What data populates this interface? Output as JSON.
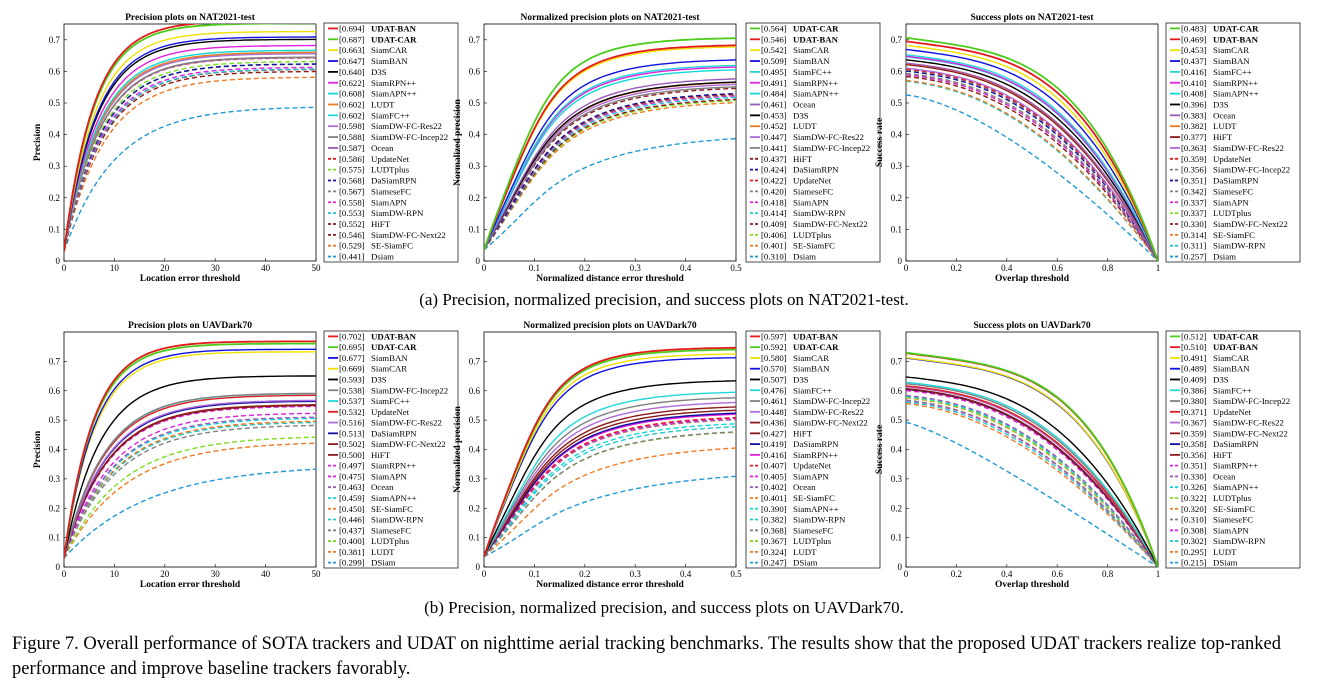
{
  "figure": {
    "caption_a": "(a) Precision, normalized precision, and success plots on NAT2021-test.",
    "caption_b": "(b) Precision, normalized precision, and success plots on UAVDark70.",
    "caption_main": "Figure 7. Overall performance of SOTA trackers and UDAT on nighttime aerial tracking benchmarks. The results show that the proposed UDAT trackers realize top-ranked performance and improve baseline trackers favorably."
  },
  "tracker_colors": {
    "UDAT-BAN": "#e41a1c",
    "UDAT-CAR": "#4ccc1a",
    "SiamCAR": "#f0e000",
    "SiamBAN": "#1010e0",
    "D3S": "#000000",
    "SiamRPN++": "#e020e0",
    "SiamAPN++": "#10d8d8",
    "LUDT": "#f07a20",
    "SiamFC++": "#20d8d8",
    "SiamDW-FC-Res22": "#ad6ad8",
    "SiamDW-FC-Incep22": "#808080",
    "Ocean": "#9b59b6",
    "UpdateNet": "#e41a1c",
    "LUDTplus": "#7ddc1f",
    "DaSiamRPN": "#1010a0",
    "SiameseFC": "#808080",
    "SiamAPN": "#e020e0",
    "SiamDW-RPN": "#20c8d0",
    "HiFT": "#8b1a1a",
    "SiamDW-FC-Next22": "#8b1a1a",
    "SE-SiamFC": "#f07a20",
    "DSiam": "#1f9ad6",
    "Dsiam": "#1f9ad6"
  },
  "chart_data": [
    {
      "type": "line",
      "title": "Precision plots on NAT2021-test",
      "xlabel": "Location error threshold",
      "ylabel": "Precision",
      "xlim": [
        0,
        50
      ],
      "ylim": [
        0,
        0.75
      ],
      "xticks": [
        0,
        10,
        20,
        30,
        40,
        50
      ],
      "yticks": [
        0,
        0.1,
        0.2,
        0.3,
        0.4,
        0.5,
        0.6,
        0.7
      ],
      "curve": "precision",
      "legend": [
        {
          "score": "0.694",
          "name": "UDAT-BAN",
          "bold": true
        },
        {
          "score": "0.687",
          "name": "UDAT-CAR",
          "bold": true
        },
        {
          "score": "0.663",
          "name": "SiamCAR"
        },
        {
          "score": "0.647",
          "name": "SiamBAN"
        },
        {
          "score": "0.640",
          "name": "D3S"
        },
        {
          "score": "0.622",
          "name": "SiamRPN++"
        },
        {
          "score": "0.608",
          "name": "SiamAPN++"
        },
        {
          "score": "0.602",
          "name": "LUDT"
        },
        {
          "score": "0.602",
          "name": "SiamFC++"
        },
        {
          "score": "0.598",
          "name": "SiamDW-FC-Res22"
        },
        {
          "score": "0.588",
          "name": "SiamDW-FC-Incep22"
        },
        {
          "score": "0.587",
          "name": "Ocean"
        },
        {
          "score": "0.586",
          "name": "UpdateNet",
          "dashed": true
        },
        {
          "score": "0.575",
          "name": "LUDTplus",
          "dashed": true
        },
        {
          "score": "0.568",
          "name": "DaSiamRPN",
          "dashed": true
        },
        {
          "score": "0.567",
          "name": "SiameseFC",
          "dashed": true
        },
        {
          "score": "0.558",
          "name": "SiamAPN",
          "dashed": true
        },
        {
          "score": "0.553",
          "name": "SiamDW-RPN",
          "dashed": true
        },
        {
          "score": "0.552",
          "name": "HiFT",
          "dashed": true
        },
        {
          "score": "0.546",
          "name": "SiamDW-FC-Next22",
          "dashed": true
        },
        {
          "score": "0.529",
          "name": "SE-SiamFC",
          "dashed": true
        },
        {
          "score": "0.441",
          "name": "Dsiam",
          "dashed": true
        }
      ]
    },
    {
      "type": "line",
      "title": "Normalized precision plots on NAT2021-test",
      "xlabel": "Normalized distance error threshold",
      "ylabel": "Normalized precision",
      "xlim": [
        0,
        0.5
      ],
      "ylim": [
        0,
        0.75
      ],
      "xticks": [
        0,
        0.1,
        0.2,
        0.3,
        0.4,
        0.5
      ],
      "yticks": [
        0,
        0.1,
        0.2,
        0.3,
        0.4,
        0.5,
        0.6,
        0.7
      ],
      "curve": "normprec",
      "legend": [
        {
          "score": "0.564",
          "name": "UDAT-CAR",
          "bold": true
        },
        {
          "score": "0.546",
          "name": "UDAT-BAN",
          "bold": true
        },
        {
          "score": "0.542",
          "name": "SiamCAR"
        },
        {
          "score": "0.509",
          "name": "SiamBAN"
        },
        {
          "score": "0.495",
          "name": "SiamFC++"
        },
        {
          "score": "0.491",
          "name": "SiamRPN++"
        },
        {
          "score": "0.484",
          "name": "SiamAPN++"
        },
        {
          "score": "0.461",
          "name": "Ocean"
        },
        {
          "score": "0.453",
          "name": "D3S"
        },
        {
          "score": "0.452",
          "name": "LUDT"
        },
        {
          "score": "0.447",
          "name": "SiamDW-FC-Res22"
        },
        {
          "score": "0.441",
          "name": "SiamDW-FC-Incep22"
        },
        {
          "score": "0.437",
          "name": "HiFT",
          "dashed": true
        },
        {
          "score": "0.424",
          "name": "DaSiamRPN",
          "dashed": true
        },
        {
          "score": "0.422",
          "name": "UpdateNet",
          "dashed": true
        },
        {
          "score": "0.420",
          "name": "SiameseFC",
          "dashed": true
        },
        {
          "score": "0.418",
          "name": "SiamAPN",
          "dashed": true
        },
        {
          "score": "0.414",
          "name": "SiamDW-RPN",
          "dashed": true
        },
        {
          "score": "0.409",
          "name": "SiamDW-FC-Next22",
          "dashed": true
        },
        {
          "score": "0.406",
          "name": "LUDTplus",
          "dashed": true
        },
        {
          "score": "0.401",
          "name": "SE-SiamFC",
          "dashed": true
        },
        {
          "score": "0.310",
          "name": "Dsiam",
          "dashed": true
        }
      ]
    },
    {
      "type": "line",
      "title": "Success plots on NAT2021-test",
      "xlabel": "Overlap threshold",
      "ylabel": "Success rate",
      "xlim": [
        0,
        1
      ],
      "ylim": [
        0,
        0.75
      ],
      "xticks": [
        0,
        0.2,
        0.4,
        0.6,
        0.8,
        1
      ],
      "yticks": [
        0,
        0.1,
        0.2,
        0.3,
        0.4,
        0.5,
        0.6,
        0.7
      ],
      "curve": "success",
      "legend": [
        {
          "score": "0.483",
          "name": "UDAT-CAR",
          "bold": true
        },
        {
          "score": "0.469",
          "name": "UDAT-BAN",
          "bold": true
        },
        {
          "score": "0.453",
          "name": "SiamCAR"
        },
        {
          "score": "0.437",
          "name": "SiamBAN"
        },
        {
          "score": "0.416",
          "name": "SiamFC++"
        },
        {
          "score": "0.410",
          "name": "SiamRPN++"
        },
        {
          "score": "0.408",
          "name": "SiamAPN++"
        },
        {
          "score": "0.396",
          "name": "D3S"
        },
        {
          "score": "0.383",
          "name": "Ocean"
        },
        {
          "score": "0.382",
          "name": "LUDT"
        },
        {
          "score": "0.377",
          "name": "HiFT"
        },
        {
          "score": "0.363",
          "name": "SiamDW-FC-Res22"
        },
        {
          "score": "0.359",
          "name": "UpdateNet",
          "dashed": true
        },
        {
          "score": "0.356",
          "name": "SiamDW-FC-Incep22",
          "dashed": true
        },
        {
          "score": "0.351",
          "name": "DaSiamRPN",
          "dashed": true
        },
        {
          "score": "0.342",
          "name": "SiameseFC",
          "dashed": true
        },
        {
          "score": "0.337",
          "name": "SiamAPN",
          "dashed": true
        },
        {
          "score": "0.337",
          "name": "LUDTplus",
          "dashed": true
        },
        {
          "score": "0.330",
          "name": "SiamDW-FC-Next22",
          "dashed": true
        },
        {
          "score": "0.314",
          "name": "SE-SiamFC",
          "dashed": true
        },
        {
          "score": "0.311",
          "name": "SiamDW-RPN",
          "dashed": true
        },
        {
          "score": "0.257",
          "name": "Dsiam",
          "dashed": true
        }
      ]
    },
    {
      "type": "line",
      "title": "Precision plots on UAVDark70",
      "xlabel": "Location error threshold",
      "ylabel": "Precision",
      "xlim": [
        0,
        50
      ],
      "ylim": [
        0,
        0.8
      ],
      "xticks": [
        0,
        10,
        20,
        30,
        40,
        50
      ],
      "yticks": [
        0,
        0.1,
        0.2,
        0.3,
        0.4,
        0.5,
        0.6,
        0.7
      ],
      "curve": "precision",
      "legend": [
        {
          "score": "0.702",
          "name": "UDAT-BAN",
          "bold": true
        },
        {
          "score": "0.695",
          "name": "UDAT-CAR",
          "bold": true
        },
        {
          "score": "0.677",
          "name": "SiamBAN"
        },
        {
          "score": "0.669",
          "name": "SiamCAR"
        },
        {
          "score": "0.593",
          "name": "D3S"
        },
        {
          "score": "0.538",
          "name": "SiamDW-FC-Incep22"
        },
        {
          "score": "0.537",
          "name": "SiamFC++"
        },
        {
          "score": "0.532",
          "name": "UpdateNet"
        },
        {
          "score": "0.516",
          "name": "SiamDW-FC-Res22"
        },
        {
          "score": "0.513",
          "name": "DaSiamRPN"
        },
        {
          "score": "0.502",
          "name": "SiamDW-FC-Next22"
        },
        {
          "score": "0.500",
          "name": "HiFT"
        },
        {
          "score": "0.497",
          "name": "SiamRPN++",
          "dashed": true
        },
        {
          "score": "0.475",
          "name": "SiamAPN",
          "dashed": true
        },
        {
          "score": "0.463",
          "name": "Ocean",
          "dashed": true
        },
        {
          "score": "0.459",
          "name": "SiamAPN++",
          "dashed": true
        },
        {
          "score": "0.450",
          "name": "SE-SiamFC",
          "dashed": true
        },
        {
          "score": "0.446",
          "name": "SiamDW-RPN",
          "dashed": true
        },
        {
          "score": "0.437",
          "name": "SiameseFC",
          "dashed": true
        },
        {
          "score": "0.400",
          "name": "LUDTplus",
          "dashed": true
        },
        {
          "score": "0.381",
          "name": "LUDT",
          "dashed": true
        },
        {
          "score": "0.299",
          "name": "DSiam",
          "dashed": true
        }
      ]
    },
    {
      "type": "line",
      "title": "Normalized precision plots on UAVDark70",
      "xlabel": "Normalized distance error threshold",
      "ylabel": "Normalized precision",
      "xlim": [
        0,
        0.5
      ],
      "ylim": [
        0,
        0.8
      ],
      "xticks": [
        0,
        0.1,
        0.2,
        0.3,
        0.4,
        0.5
      ],
      "yticks": [
        0,
        0.1,
        0.2,
        0.3,
        0.4,
        0.5,
        0.6,
        0.7
      ],
      "curve": "normprec",
      "legend": [
        {
          "score": "0.597",
          "name": "UDAT-BAN",
          "bold": true
        },
        {
          "score": "0.592",
          "name": "UDAT-CAR",
          "bold": true
        },
        {
          "score": "0.580",
          "name": "SiamCAR"
        },
        {
          "score": "0.570",
          "name": "SiamBAN"
        },
        {
          "score": "0.507",
          "name": "D3S"
        },
        {
          "score": "0.476",
          "name": "SiamFC++"
        },
        {
          "score": "0.461",
          "name": "SiamDW-FC-Incep22"
        },
        {
          "score": "0.448",
          "name": "SiamDW-FC-Res22"
        },
        {
          "score": "0.436",
          "name": "SiamDW-FC-Next22"
        },
        {
          "score": "0.427",
          "name": "HiFT"
        },
        {
          "score": "0.419",
          "name": "DaSiamRPN"
        },
        {
          "score": "0.416",
          "name": "SiamRPN++"
        },
        {
          "score": "0.407",
          "name": "UpdateNet",
          "dashed": true
        },
        {
          "score": "0.405",
          "name": "SiamAPN",
          "dashed": true
        },
        {
          "score": "0.402",
          "name": "Ocean",
          "dashed": true
        },
        {
          "score": "0.401",
          "name": "SE-SiamFC",
          "dashed": true
        },
        {
          "score": "0.390",
          "name": "SiamAPN++",
          "dashed": true
        },
        {
          "score": "0.382",
          "name": "SiamDW-RPN",
          "dashed": true
        },
        {
          "score": "0.368",
          "name": "SiameseFC",
          "dashed": true
        },
        {
          "score": "0.367",
          "name": "LUDTplus",
          "dashed": true
        },
        {
          "score": "0.324",
          "name": "LUDT",
          "dashed": true
        },
        {
          "score": "0.247",
          "name": "DSiam",
          "dashed": true
        }
      ]
    },
    {
      "type": "line",
      "title": "Success plots on UAVDark70",
      "xlabel": "Overlap threshold",
      "ylabel": "Success rate",
      "xlim": [
        0,
        1
      ],
      "ylim": [
        0,
        0.8
      ],
      "xticks": [
        0,
        0.2,
        0.4,
        0.6,
        0.8,
        1
      ],
      "yticks": [
        0,
        0.1,
        0.2,
        0.3,
        0.4,
        0.5,
        0.6,
        0.7
      ],
      "curve": "success",
      "legend": [
        {
          "score": "0.512",
          "name": "UDAT-CAR",
          "bold": true
        },
        {
          "score": "0.510",
          "name": "UDAT-BAN",
          "bold": true
        },
        {
          "score": "0.491",
          "name": "SiamCAR"
        },
        {
          "score": "0.489",
          "name": "SiamBAN"
        },
        {
          "score": "0.409",
          "name": "D3S"
        },
        {
          "score": "0.386",
          "name": "SiamFC++"
        },
        {
          "score": "0.380",
          "name": "SiamDW-FC-Incep22"
        },
        {
          "score": "0.371",
          "name": "UpdateNet"
        },
        {
          "score": "0.367",
          "name": "SiamDW-FC-Res22"
        },
        {
          "score": "0.359",
          "name": "SiamDW-FC-Next22"
        },
        {
          "score": "0.358",
          "name": "DaSiamRPN"
        },
        {
          "score": "0.356",
          "name": "HiFT"
        },
        {
          "score": "0.351",
          "name": "SiamRPN++",
          "dashed": true
        },
        {
          "score": "0.330",
          "name": "Ocean",
          "dashed": true
        },
        {
          "score": "0.326",
          "name": "SiamAPN++",
          "dashed": true
        },
        {
          "score": "0.322",
          "name": "LUDTplus",
          "dashed": true
        },
        {
          "score": "0.320",
          "name": "SE-SiamFC",
          "dashed": true
        },
        {
          "score": "0.310",
          "name": "SiameseFC",
          "dashed": true
        },
        {
          "score": "0.308",
          "name": "SiamAPN",
          "dashed": true
        },
        {
          "score": "0.302",
          "name": "SiamDW-RPN",
          "dashed": true
        },
        {
          "score": "0.295",
          "name": "LUDT",
          "dashed": true
        },
        {
          "score": "0.215",
          "name": "DSiam",
          "dashed": true
        }
      ]
    }
  ]
}
